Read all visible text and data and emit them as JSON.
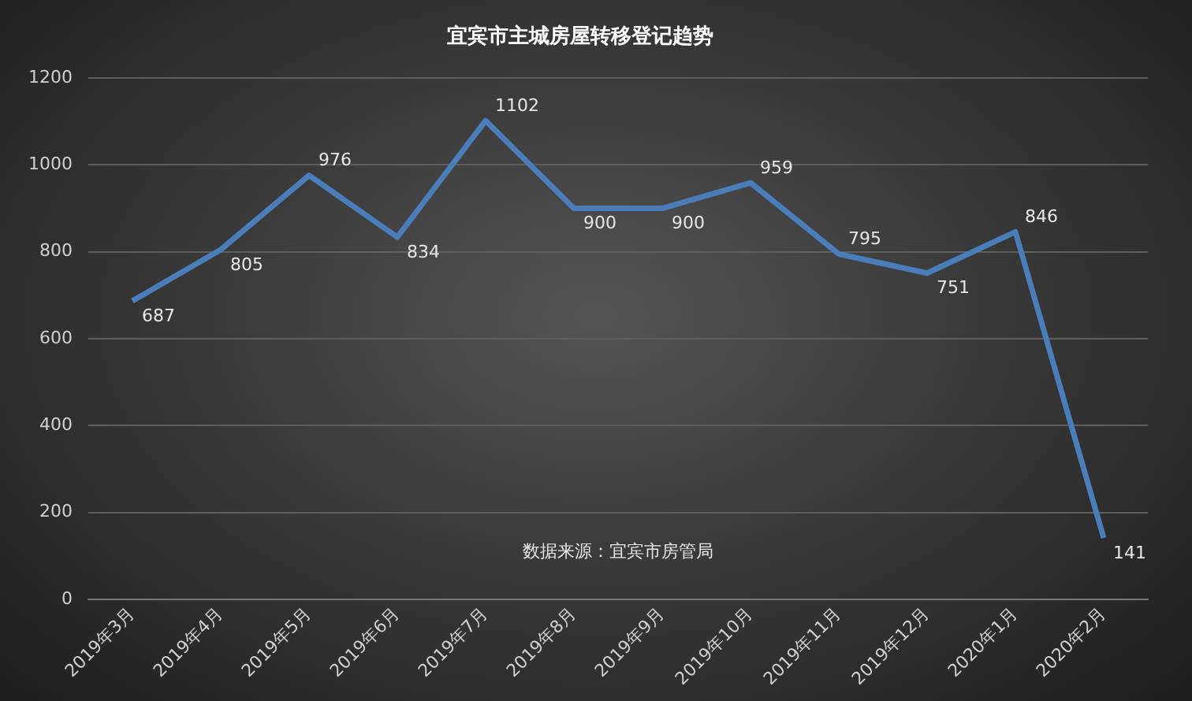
{
  "chart_data": {
    "type": "line",
    "title": "宜宾市主城房屋转移登记趋势",
    "categories": [
      "2019年3月",
      "2019年4月",
      "2019年5月",
      "2019年6月",
      "2019年7月",
      "2019年8月",
      "2019年9月",
      "2019年10月",
      "2019年11月",
      "2019年12月",
      "2020年1月",
      "2020年2月"
    ],
    "series": [
      {
        "color": "#4a7ebb",
        "values": [
          687,
          805,
          976,
          834,
          1102,
          900,
          900,
          959,
          795,
          751,
          846,
          141
        ]
      }
    ],
    "ylim": [
      0,
      1200
    ],
    "yticks": [
      0,
      200,
      400,
      600,
      800,
      1000,
      1200
    ],
    "grid": "y",
    "legend": false,
    "marker": "none",
    "line_style": "solid",
    "data_labels": true,
    "annotations": [
      "数据来源：宜宾市房管局"
    ]
  }
}
